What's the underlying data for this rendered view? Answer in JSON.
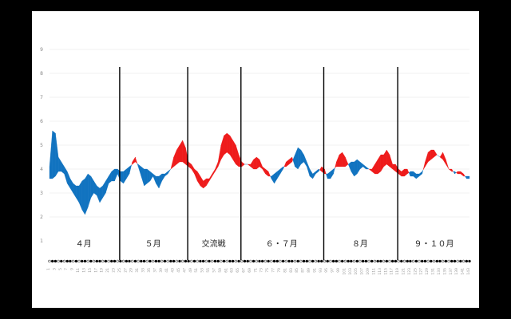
{
  "chart_data": {
    "type": "area",
    "title": "",
    "xlabel": "",
    "ylabel": "",
    "ylim": [
      1,
      9
    ],
    "y_ticks": [
      "1",
      "2",
      "3",
      "4",
      "5",
      "6",
      "7",
      "8",
      "9"
    ],
    "grid": true,
    "colors": {
      "positive": "#1173c0",
      "negative": "#ee1b1b",
      "line": "#000000"
    },
    "segments": [
      {
        "label": "４月",
        "x_range": [
          1,
          24
        ]
      },
      {
        "label": "５月",
        "x_range": [
          25,
          47
        ]
      },
      {
        "label": "交流戦",
        "x_range": [
          48,
          65
        ]
      },
      {
        "label": "６・７月",
        "x_range": [
          66,
          93
        ]
      },
      {
        "label": "８月",
        "x_range": [
          94,
          118
        ]
      },
      {
        "label": "９・１０月",
        "x_range": [
          119,
          143
        ]
      }
    ],
    "x_tick_labels": [
      "1",
      "3",
      "5",
      "7",
      "9",
      "11",
      "13",
      "15",
      "17",
      "19",
      "21",
      "23",
      "25",
      "27",
      "29",
      "31",
      "33",
      "35",
      "37",
      "39",
      "41",
      "43",
      "45",
      "47",
      "49",
      "51",
      "53",
      "55",
      "57",
      "59",
      "61",
      "63",
      "65",
      "67",
      "69",
      "71",
      "73",
      "75",
      "77",
      "79",
      "81",
      "83",
      "85",
      "87",
      "89",
      "91",
      "93",
      "95",
      "97",
      "99",
      "101",
      "103",
      "105",
      "107",
      "109",
      "111",
      "113",
      "115",
      "117",
      "119",
      "121",
      "123",
      "125",
      "127",
      "129",
      "131",
      "133",
      "135",
      "137",
      "139",
      "141",
      "143"
    ],
    "series": [
      {
        "values": [
          4.1,
          5.6,
          5.5,
          4.5,
          4.3,
          4.1,
          3.9,
          3.6,
          3.4,
          3.3,
          3.3,
          3.5,
          3.6,
          3.8,
          3.7,
          3.5,
          3.3,
          3.2,
          3.3,
          3.5,
          3.7,
          3.9,
          4.0,
          4.0,
          3.9,
          3.9,
          4.0,
          4.1,
          4.2,
          4.3,
          4.2,
          4.1,
          4.0,
          4.0,
          3.9,
          3.8,
          3.7,
          3.7,
          3.8,
          3.8,
          3.9,
          4.0,
          4.1,
          4.2,
          4.3,
          4.3,
          4.2,
          4.1,
          4.0,
          3.8,
          3.5,
          3.3,
          3.2,
          3.3,
          3.5,
          3.7,
          3.9,
          4.1,
          4.4,
          4.6,
          4.7,
          4.6,
          4.4,
          4.2,
          4.1,
          4.1,
          4.2,
          4.2,
          4.1,
          4.0,
          4.0,
          4.1,
          4.0,
          3.8,
          3.7,
          3.7,
          3.8,
          3.9,
          4.0,
          4.1,
          4.1,
          4.2,
          4.3,
          4.6,
          4.9,
          4.8,
          4.6,
          4.3,
          4.0,
          3.8,
          3.9,
          4.0,
          3.9,
          3.8,
          3.8,
          3.9,
          4.0,
          4.1,
          4.1,
          4.1,
          4.1,
          4.2,
          4.3,
          4.3,
          4.4,
          4.3,
          4.2,
          4.1,
          4.0,
          3.9,
          3.8,
          3.8,
          3.9,
          4.1,
          4.2,
          4.1,
          4.0,
          3.9,
          3.8,
          3.7,
          3.7,
          3.8,
          3.9,
          3.9,
          3.8,
          3.8,
          3.9,
          4.1,
          4.3,
          4.4,
          4.5,
          4.6,
          4.5,
          4.4,
          4.2,
          4.0,
          3.9,
          3.9,
          3.8,
          3.8,
          3.7,
          3.7,
          3.7
        ]
      },
      {
        "values": [
          3.6,
          3.6,
          3.7,
          3.9,
          3.9,
          3.8,
          3.4,
          3.2,
          3.0,
          2.8,
          2.6,
          2.3,
          2.1,
          2.4,
          2.8,
          3.0,
          2.9,
          2.6,
          2.8,
          3.0,
          3.4,
          3.5,
          3.5,
          3.8,
          3.5,
          3.4,
          3.6,
          3.8,
          4.3,
          4.5,
          4.1,
          3.7,
          3.3,
          3.4,
          3.5,
          3.7,
          3.4,
          3.2,
          3.5,
          3.7,
          3.8,
          4.0,
          4.5,
          4.8,
          5.0,
          5.2,
          4.9,
          4.3,
          4.2,
          4.0,
          3.9,
          3.7,
          3.5,
          3.6,
          3.6,
          3.8,
          4.0,
          4.3,
          5.0,
          5.4,
          5.5,
          5.4,
          5.2,
          5.0,
          4.6,
          4.3,
          4.2,
          4.2,
          4.2,
          4.4,
          4.5,
          4.4,
          4.1,
          4.0,
          3.9,
          3.6,
          3.4,
          3.6,
          3.8,
          4.0,
          4.3,
          4.4,
          4.5,
          4.1,
          4.0,
          4.2,
          4.3,
          4.1,
          3.7,
          3.6,
          3.8,
          3.9,
          4.1,
          4.0,
          3.6,
          3.6,
          3.8,
          4.3,
          4.6,
          4.7,
          4.5,
          4.2,
          3.9,
          3.7,
          3.8,
          4.0,
          4.1,
          4.0,
          4.0,
          4.0,
          4.2,
          4.4,
          4.6,
          4.6,
          4.8,
          4.6,
          4.2,
          4.2,
          4.0,
          3.9,
          4.0,
          4.0,
          3.7,
          3.7,
          3.6,
          3.7,
          3.8,
          4.3,
          4.7,
          4.8,
          4.8,
          4.6,
          4.5,
          4.7,
          4.4,
          4.0,
          4.0,
          3.8,
          3.9,
          3.9,
          3.8,
          3.6,
          3.6
        ]
      }
    ]
  }
}
